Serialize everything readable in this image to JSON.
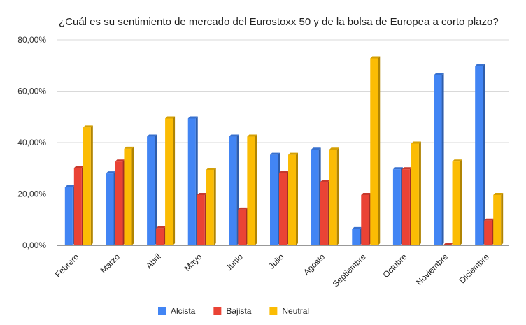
{
  "chart_data": {
    "type": "bar",
    "title": "¿Cuál es su sentimiento de mercado del Eurostoxx 50 y de la bolsa de Europea a corto plazo?",
    "categories": [
      "Febrero",
      "Marzo",
      "Abril",
      "Mayo",
      "Junio",
      "Julio",
      "Agosto",
      "Septiembre",
      "Octubre",
      "Noviembre",
      "Diciembre"
    ],
    "series": [
      {
        "name": "Alcista",
        "color": "#4285f4",
        "values": [
          22.6,
          28.0,
          42.3,
          49.4,
          42.3,
          35.2,
          37.2,
          6.3,
          29.6,
          66.3,
          69.8
        ]
      },
      {
        "name": "Bajista",
        "color": "#ea4335",
        "values": [
          30.1,
          32.6,
          6.6,
          19.6,
          13.9,
          28.2,
          24.6,
          19.6,
          29.6,
          0.0,
          9.6
        ]
      },
      {
        "name": "Neutral",
        "color": "#fbbc04",
        "values": [
          45.9,
          37.6,
          49.4,
          29.4,
          42.3,
          35.2,
          37.2,
          72.8,
          39.6,
          32.6,
          19.6
        ]
      }
    ],
    "yticks": [
      "0,00%",
      "20,00%",
      "40,00%",
      "60,00%",
      "80,00%"
    ],
    "ylim": [
      0,
      80
    ],
    "grid": true,
    "legend_position": "bottom"
  }
}
